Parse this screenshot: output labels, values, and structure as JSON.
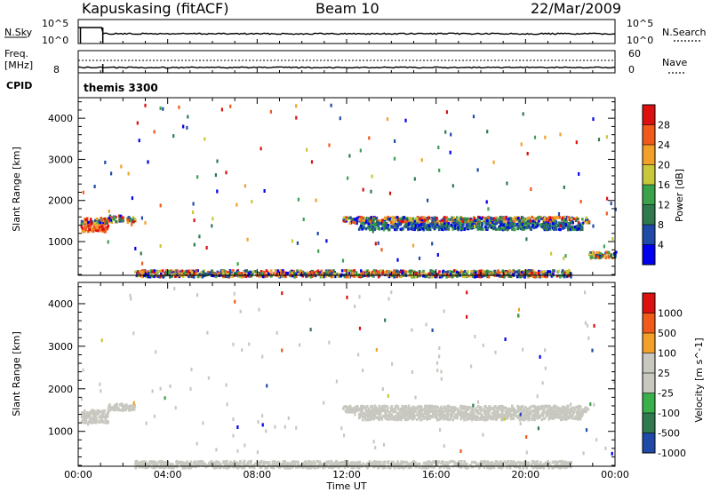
{
  "header": {
    "station": "Kapuskasing (fitACF)",
    "beam": "Beam 10",
    "date": "22/Mar/2009"
  },
  "sky_panel": {
    "left_label": "N.Sky",
    "left_ticks": [
      "10^5",
      "10^0"
    ],
    "right_label": "N.Search",
    "right_ticks": [
      "10^5",
      "10^0"
    ]
  },
  "freq_panel": {
    "left_label_1": "Freq.",
    "left_label_2": "[MHz]",
    "left_tick": "8",
    "right_label": "Nave",
    "right_ticks": [
      "60",
      "0"
    ]
  },
  "cpid": {
    "label": "CPID",
    "value": "themis 3300"
  },
  "colors": {
    "power_scale": [
      "#0000ee",
      "#1f4aa8",
      "#2e7a4e",
      "#3aa24a",
      "#c8c83a",
      "#f2a02a",
      "#f05a1a",
      "#dd1010"
    ],
    "velocity_scale": [
      "#dd1010",
      "#f05a1a",
      "#f2a02a",
      "#c8c8c0",
      "#c8c8c0",
      "#3ab04a",
      "#2e7a4e",
      "#1f4aa8"
    ],
    "ground_scatter": "#c8c8c0"
  },
  "chart_data": [
    {
      "type": "heatmap",
      "title": "",
      "xlabel": "Time UT",
      "ylabel": "Slant Range [km]",
      "x_ticks": [
        "00:00",
        "04:00",
        "08:00",
        "12:00",
        "16:00",
        "20:00",
        "00:00"
      ],
      "y_ticks": [
        1000,
        2000,
        3000,
        4000
      ],
      "xlim_hours": [
        0,
        24
      ],
      "ylim_km": [
        180,
        4500
      ],
      "colorbar": {
        "label": "Power [dB]",
        "ticks": [
          "4",
          "8",
          "12",
          "16",
          "20",
          "24",
          "28"
        ],
        "range": [
          0,
          30
        ]
      },
      "echo_bands": [
        {
          "t_start": 0.1,
          "t_end": 1.3,
          "range_km": 1530,
          "level": "mixed"
        },
        {
          "t_start": 0.1,
          "t_end": 1.3,
          "range_km": 1350,
          "level": "high"
        },
        {
          "t_start": 1.3,
          "t_end": 2.5,
          "range_km": 1580,
          "level": "mixed"
        },
        {
          "t_start": 11.8,
          "t_end": 22.8,
          "range_km": 1550,
          "level": "mixed"
        },
        {
          "t_start": 12.5,
          "t_end": 22.5,
          "range_km": 1400,
          "level": "low"
        },
        {
          "t_start": 2.5,
          "t_end": 22.0,
          "range_km": 250,
          "level": "mixed"
        },
        {
          "t_start": 22.8,
          "t_end": 24.0,
          "range_km": 700,
          "level": "mixed"
        }
      ]
    },
    {
      "type": "heatmap",
      "title": "",
      "xlabel": "Time UT",
      "ylabel": "Slant Range [km]",
      "x_ticks": [
        "00:00",
        "04:00",
        "08:00",
        "12:00",
        "16:00",
        "20:00",
        "00:00"
      ],
      "y_ticks": [
        1000,
        2000,
        3000,
        4000
      ],
      "xlim_hours": [
        0,
        24
      ],
      "ylim_km": [
        180,
        4500
      ],
      "colorbar": {
        "label": "Velocity [m s^-1]",
        "ticks": [
          "1000",
          "500",
          "100",
          "25",
          "-25",
          "-100",
          "-500",
          "-1000"
        ]
      },
      "echo_bands": [
        {
          "t_start": 0.1,
          "t_end": 1.3,
          "range_km": 1450,
          "level": "ground"
        },
        {
          "t_start": 0.1,
          "t_end": 1.3,
          "range_km": 1300,
          "level": "ground"
        },
        {
          "t_start": 1.3,
          "t_end": 2.5,
          "range_km": 1600,
          "level": "ground"
        },
        {
          "t_start": 11.8,
          "t_end": 22.8,
          "range_km": 1550,
          "level": "ground"
        },
        {
          "t_start": 12.5,
          "t_end": 22.5,
          "range_km": 1380,
          "level": "ground"
        },
        {
          "t_start": 2.5,
          "t_end": 22.0,
          "range_km": 250,
          "level": "ground"
        }
      ]
    }
  ]
}
